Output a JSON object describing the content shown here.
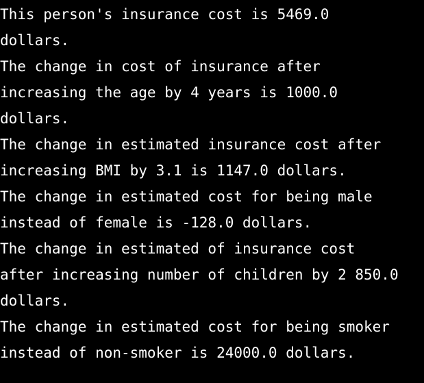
{
  "console": {
    "lines": [
      "This person's insurance cost is 5469.0",
      "dollars.",
      "The change in cost of insurance after",
      "increasing the age by 4 years is 1000.0",
      "dollars.",
      "The change in estimated insurance cost after",
      "increasing BMI by 3.1 is 1147.0 dollars.",
      "The change in estimated cost for being male",
      "instead of female is -128.0 dollars.",
      "The change in estimated of insurance cost",
      "after increasing number of children by 2 850.0",
      "dollars.",
      "The change in estimated cost for being smoker",
      "instead of non-smoker is 24000.0 dollars."
    ]
  }
}
